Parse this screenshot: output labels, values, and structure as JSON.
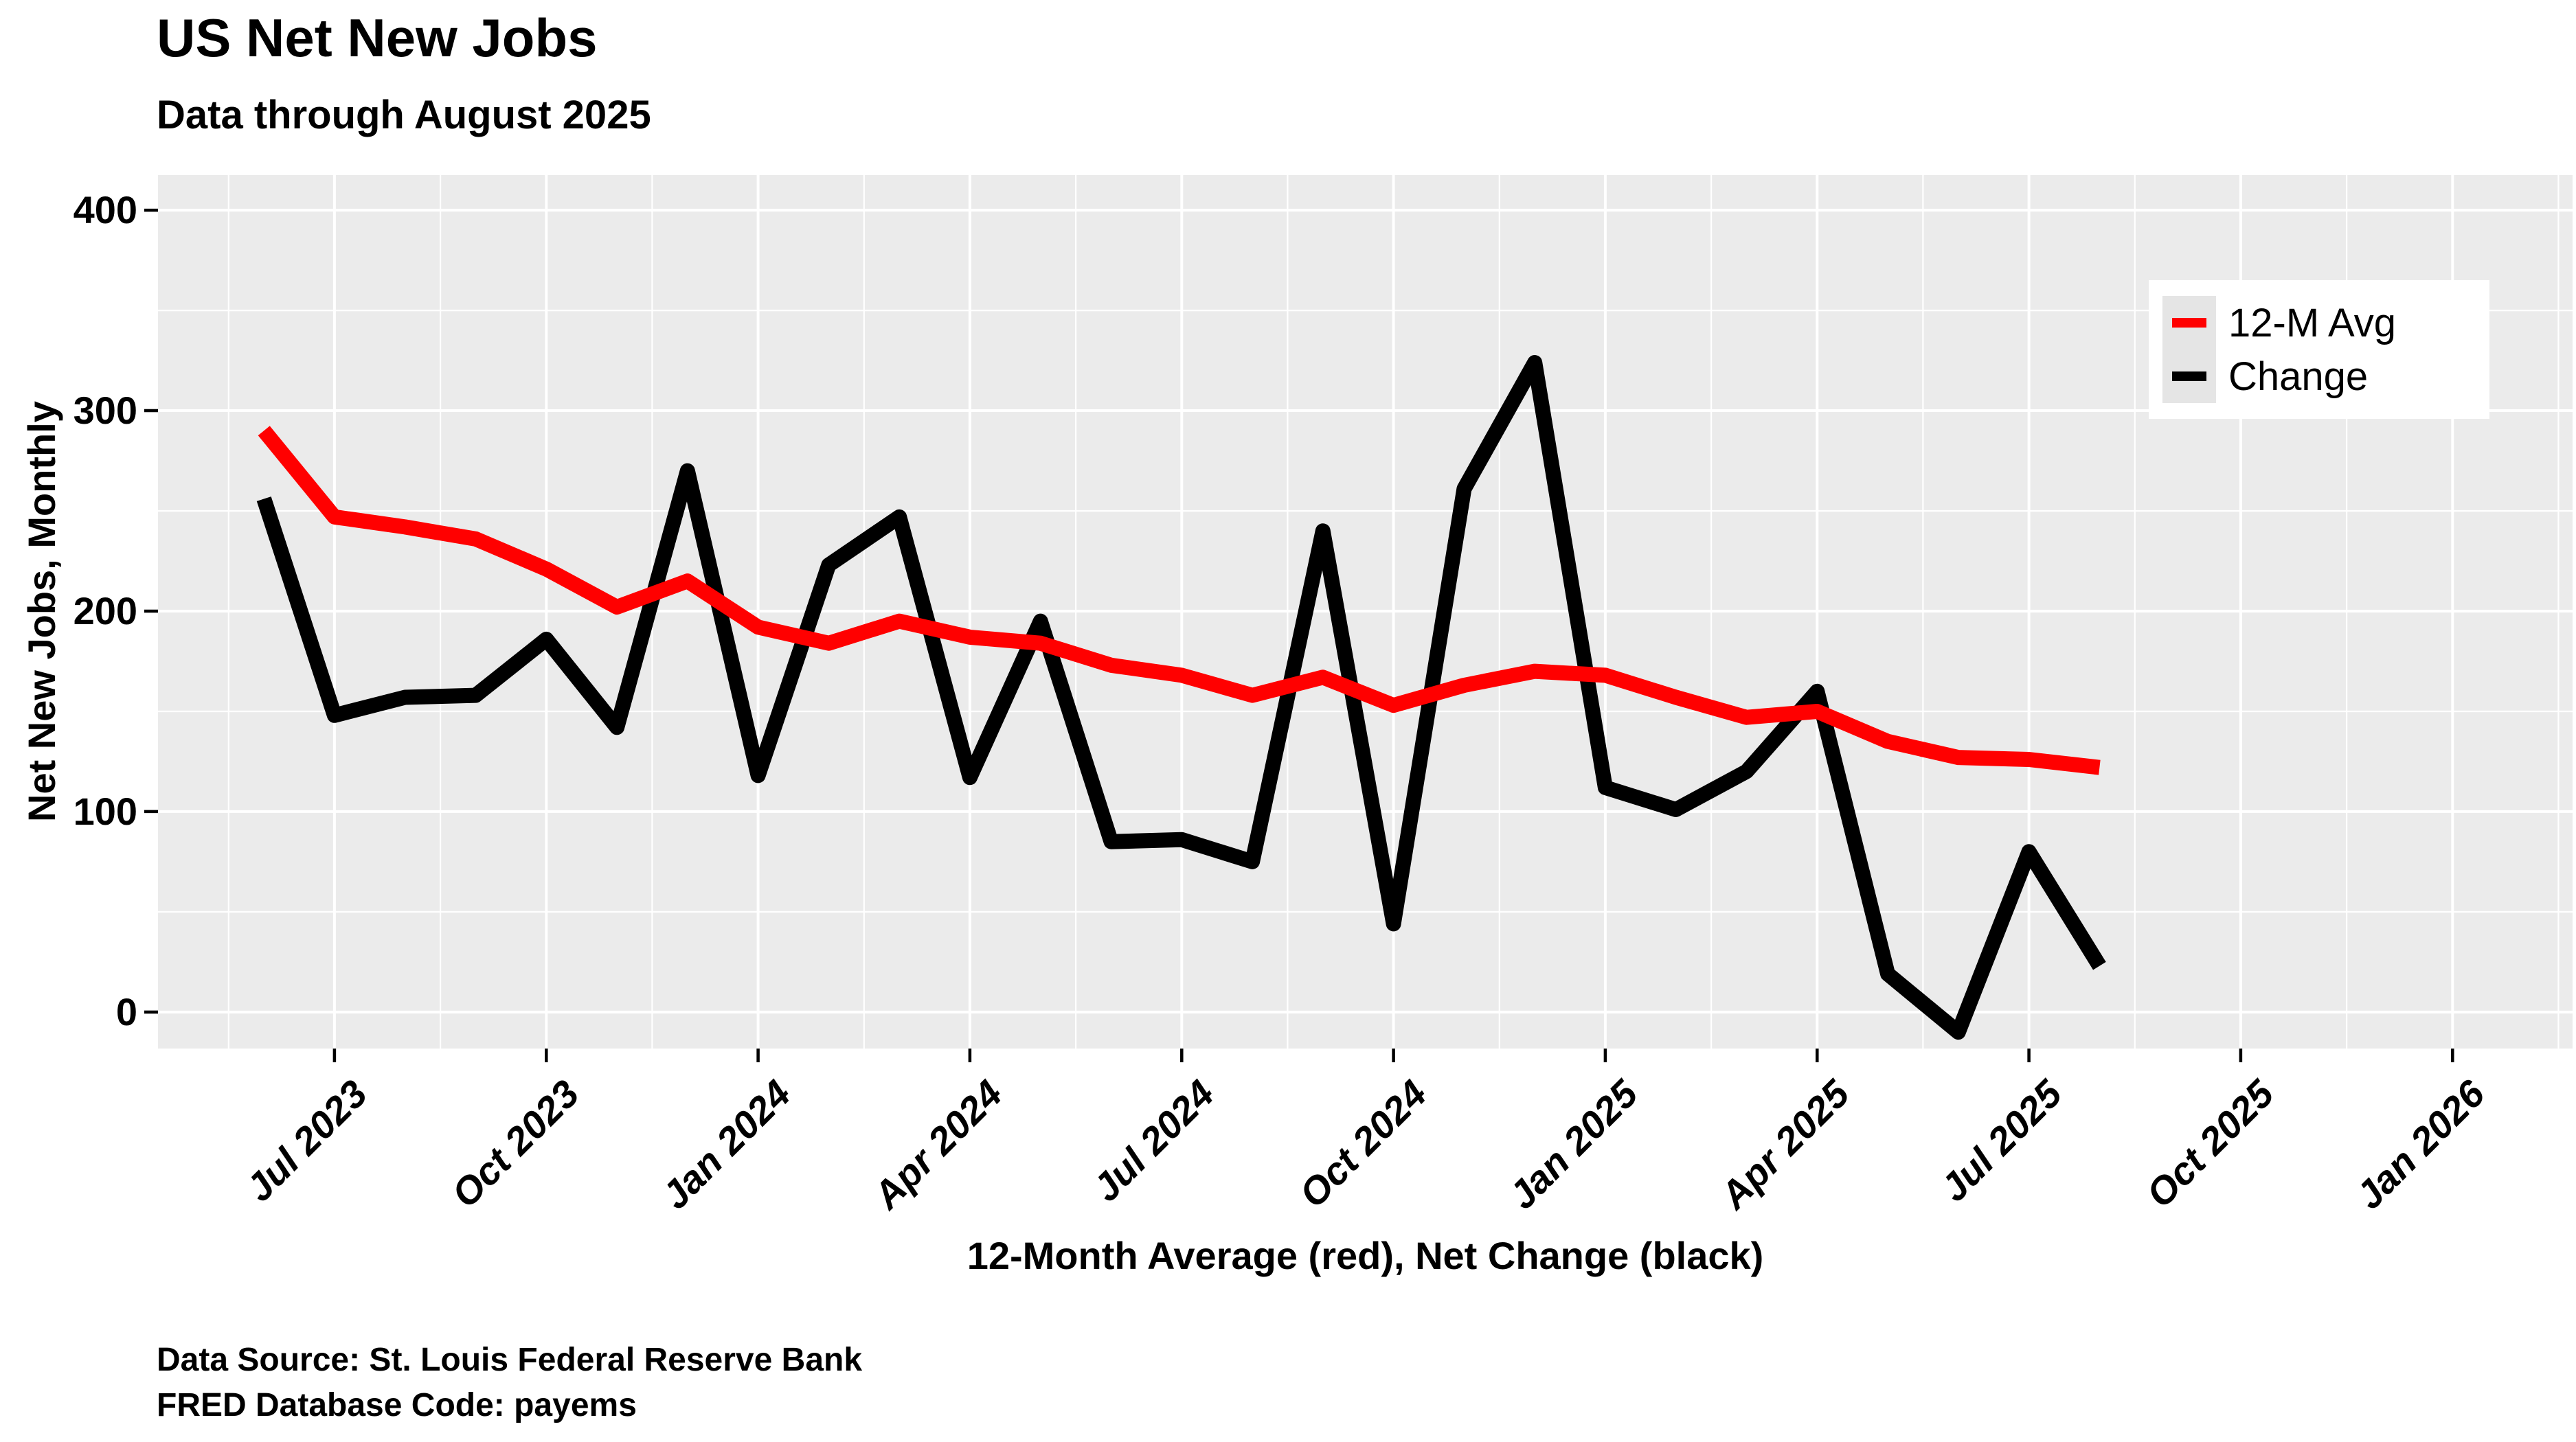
{
  "title": "US Net New Jobs",
  "subtitle": "Data through August 2025",
  "y_axis": {
    "title": "Net New Jobs, Monthly",
    "ticks": [
      0,
      100,
      200,
      300,
      400
    ]
  },
  "x_axis": {
    "title": "12-Month Average (red), Net Change (black)",
    "ticks": [
      {
        "label": "Jul 2023",
        "i": 1
      },
      {
        "label": "Oct 2023",
        "i": 4
      },
      {
        "label": "Jan 2024",
        "i": 7
      },
      {
        "label": "Apr 2024",
        "i": 10
      },
      {
        "label": "Jul 2024",
        "i": 13
      },
      {
        "label": "Oct 2024",
        "i": 16
      },
      {
        "label": "Jan 2025",
        "i": 19
      },
      {
        "label": "Apr 2025",
        "i": 22
      },
      {
        "label": "Jul 2025",
        "i": 25
      },
      {
        "label": "Oct 2025",
        "i": 28
      },
      {
        "label": "Jan 2026",
        "i": 31
      }
    ]
  },
  "legend": [
    {
      "label": "12-M Avg",
      "color": "#FF0000"
    },
    {
      "label": "Change",
      "color": "#000000"
    }
  ],
  "caption": [
    "Data Source: St. Louis Federal Reserve Bank",
    "FRED Database Code: payems"
  ],
  "colors": {
    "panel_background": "#EBEBEB",
    "gridline": "#FFFFFF",
    "avg_line": "#FF0000",
    "change_line": "#000000",
    "legend_key_background": "#E5E5E5"
  },
  "chart_data": {
    "type": "line",
    "title": "US Net New Jobs",
    "subtitle": "Data through August 2025",
    "xlabel": "12-Month Average (red), Net Change (black)",
    "ylabel": "Net New Jobs, Monthly",
    "x": [
      "Jun 2023",
      "Jul 2023",
      "Aug 2023",
      "Sep 2023",
      "Oct 2023",
      "Nov 2023",
      "Dec 2023",
      "Jan 2024",
      "Feb 2024",
      "Mar 2024",
      "Apr 2024",
      "May 2024",
      "Jun 2024",
      "Jul 2024",
      "Aug 2024",
      "Sep 2024",
      "Oct 2024",
      "Nov 2024",
      "Dec 2024",
      "Jan 2025",
      "Feb 2025",
      "Mar 2025",
      "Apr 2025",
      "May 2025",
      "Jun 2025",
      "Jul 2025",
      "Aug 2025"
    ],
    "series": [
      {
        "name": "Change",
        "color": "#000000",
        "values": [
          256,
          148,
          157,
          158,
          186,
          142,
          270,
          118,
          223,
          247,
          117,
          195,
          85,
          86,
          75,
          240,
          44,
          261,
          324,
          112,
          101,
          120,
          160,
          19,
          -10,
          80,
          23
        ]
      },
      {
        "name": "12-M Avg",
        "color": "#FF0000",
        "values": [
          290,
          247,
          242,
          236,
          221,
          202,
          215,
          192,
          184,
          195,
          187,
          184,
          173,
          168,
          158,
          167,
          153,
          163,
          170,
          168,
          157,
          147,
          150,
          135,
          127,
          126,
          122
        ]
      }
    ],
    "y_major_gridlines": [
      0,
      100,
      200,
      300,
      400
    ],
    "y_minor_gridlines": [
      50,
      150,
      250,
      350
    ],
    "ylim": [
      -18.2,
      417.5
    ],
    "x_domain_months": [
      -1.5,
      32.7
    ],
    "grid": "on",
    "legend_position": "top-right-inside"
  }
}
